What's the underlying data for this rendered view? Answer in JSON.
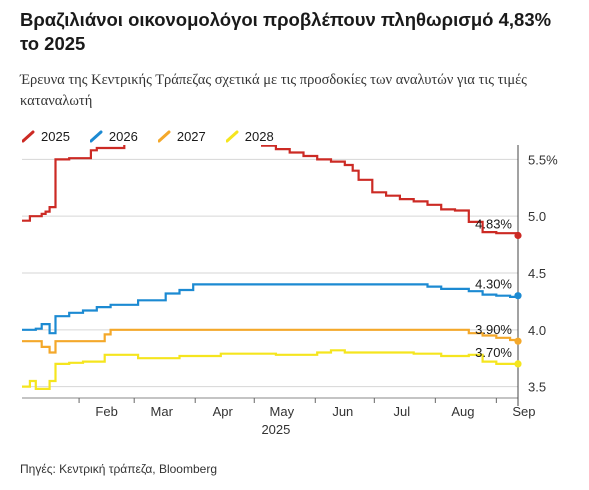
{
  "title": "Βραζιλιάνοι οικονομολόγοι προβλέπουν πληθωρισμό 4,83% το 2025",
  "subtitle": "Έρευνα της Κεντρικής Τράπεζας σχετικά με τις προσδοκίες των αναλυτών για τις τιμές καταναλωτή",
  "source": "Πηγές: Κεντρική τράπεζα, Bloomberg",
  "chart_data": {
    "type": "line",
    "x_axis": {
      "ticks": [
        "Feb",
        "Mar",
        "Apr",
        "May",
        "Jun",
        "Jul",
        "Aug",
        "Sep"
      ],
      "year_label": "2025",
      "range": [
        "2025-01-03",
        "2025-09-12"
      ]
    },
    "y_axis": {
      "ticks": [
        {
          "value": 5.5,
          "label": "5.5%"
        },
        {
          "value": 5.0,
          "label": "5.0"
        },
        {
          "value": 4.5,
          "label": "4.5"
        },
        {
          "value": 4.0,
          "label": "4.0"
        },
        {
          "value": 3.5,
          "label": "3.5"
        }
      ],
      "ylim": [
        3.4,
        5.6
      ],
      "position": "right",
      "grid": true
    },
    "series": [
      {
        "name": "2025",
        "color": "#cc2a24",
        "end_label": "4.83%",
        "points": [
          [
            "2025-01-03",
            4.96
          ],
          [
            "2025-01-07",
            5.0
          ],
          [
            "2025-01-10",
            5.0
          ],
          [
            "2025-01-13",
            5.02
          ],
          [
            "2025-01-15",
            5.04
          ],
          [
            "2025-01-17",
            5.08
          ],
          [
            "2025-01-20",
            5.5
          ],
          [
            "2025-01-27",
            5.51
          ],
          [
            "2025-02-03",
            5.51
          ],
          [
            "2025-02-07",
            5.58
          ],
          [
            "2025-02-10",
            5.6
          ],
          [
            "2025-02-17",
            5.6
          ],
          [
            "2025-02-24",
            5.65
          ],
          [
            "2025-03-03",
            5.65
          ],
          [
            "2025-03-07",
            5.68
          ],
          [
            "2025-03-10",
            5.68
          ],
          [
            "2025-03-14",
            5.66
          ],
          [
            "2025-03-17",
            5.66
          ],
          [
            "2025-03-21",
            5.65
          ],
          [
            "2025-03-31",
            5.65
          ],
          [
            "2025-04-07",
            5.65
          ],
          [
            "2025-04-14",
            5.65
          ],
          [
            "2025-04-21",
            5.65
          ],
          [
            "2025-04-28",
            5.65
          ],
          [
            "2025-05-05",
            5.62
          ],
          [
            "2025-05-12",
            5.59
          ],
          [
            "2025-05-19",
            5.56
          ],
          [
            "2025-05-26",
            5.53
          ],
          [
            "2025-06-02",
            5.5
          ],
          [
            "2025-06-09",
            5.48
          ],
          [
            "2025-06-16",
            5.45
          ],
          [
            "2025-06-20",
            5.4
          ],
          [
            "2025-06-23",
            5.32
          ],
          [
            "2025-06-30",
            5.21
          ],
          [
            "2025-07-07",
            5.18
          ],
          [
            "2025-07-14",
            5.15
          ],
          [
            "2025-07-21",
            5.13
          ],
          [
            "2025-07-28",
            5.1
          ],
          [
            "2025-08-04",
            5.06
          ],
          [
            "2025-08-11",
            5.05
          ],
          [
            "2025-08-18",
            4.95
          ],
          [
            "2025-08-25",
            4.86
          ],
          [
            "2025-09-01",
            4.85
          ],
          [
            "2025-09-08",
            4.85
          ],
          [
            "2025-09-12",
            4.83
          ]
        ]
      },
      {
        "name": "2026",
        "color": "#1c8ad2",
        "end_label": "4.30%",
        "points": [
          [
            "2025-01-03",
            4.0
          ],
          [
            "2025-01-10",
            4.01
          ],
          [
            "2025-01-13",
            4.05
          ],
          [
            "2025-01-17",
            3.97
          ],
          [
            "2025-01-20",
            4.12
          ],
          [
            "2025-01-27",
            4.15
          ],
          [
            "2025-02-03",
            4.17
          ],
          [
            "2025-02-10",
            4.2
          ],
          [
            "2025-02-17",
            4.22
          ],
          [
            "2025-02-24",
            4.22
          ],
          [
            "2025-03-03",
            4.26
          ],
          [
            "2025-03-10",
            4.26
          ],
          [
            "2025-03-17",
            4.32
          ],
          [
            "2025-03-24",
            4.35
          ],
          [
            "2025-03-31",
            4.4
          ],
          [
            "2025-04-07",
            4.4
          ],
          [
            "2025-04-14",
            4.4
          ],
          [
            "2025-04-21",
            4.4
          ],
          [
            "2025-05-05",
            4.4
          ],
          [
            "2025-05-19",
            4.4
          ],
          [
            "2025-06-02",
            4.4
          ],
          [
            "2025-06-16",
            4.4
          ],
          [
            "2025-06-30",
            4.4
          ],
          [
            "2025-07-14",
            4.4
          ],
          [
            "2025-07-28",
            4.38
          ],
          [
            "2025-08-04",
            4.36
          ],
          [
            "2025-08-11",
            4.36
          ],
          [
            "2025-08-18",
            4.34
          ],
          [
            "2025-08-25",
            4.31
          ],
          [
            "2025-09-01",
            4.3
          ],
          [
            "2025-09-08",
            4.29
          ],
          [
            "2025-09-12",
            4.3
          ]
        ]
      },
      {
        "name": "2027",
        "color": "#f4a82a",
        "end_label": "3.90%",
        "points": [
          [
            "2025-01-03",
            3.9
          ],
          [
            "2025-01-10",
            3.9
          ],
          [
            "2025-01-13",
            3.85
          ],
          [
            "2025-01-17",
            3.8
          ],
          [
            "2025-01-20",
            3.9
          ],
          [
            "2025-01-27",
            3.9
          ],
          [
            "2025-02-03",
            3.9
          ],
          [
            "2025-02-10",
            3.9
          ],
          [
            "2025-02-14",
            3.96
          ],
          [
            "2025-02-17",
            4.0
          ],
          [
            "2025-03-03",
            4.0
          ],
          [
            "2025-04-01",
            4.0
          ],
          [
            "2025-05-01",
            4.0
          ],
          [
            "2025-06-02",
            4.0
          ],
          [
            "2025-07-01",
            4.0
          ],
          [
            "2025-08-01",
            4.0
          ],
          [
            "2025-08-18",
            3.97
          ],
          [
            "2025-08-25",
            3.95
          ],
          [
            "2025-09-01",
            3.93
          ],
          [
            "2025-09-08",
            3.91
          ],
          [
            "2025-09-12",
            3.9
          ]
        ]
      },
      {
        "name": "2028",
        "color": "#f5e51e",
        "end_label": "3.70%",
        "points": [
          [
            "2025-01-03",
            3.5
          ],
          [
            "2025-01-07",
            3.55
          ],
          [
            "2025-01-10",
            3.48
          ],
          [
            "2025-01-17",
            3.55
          ],
          [
            "2025-01-20",
            3.7
          ],
          [
            "2025-01-27",
            3.71
          ],
          [
            "2025-02-03",
            3.72
          ],
          [
            "2025-02-10",
            3.72
          ],
          [
            "2025-02-14",
            3.78
          ],
          [
            "2025-02-24",
            3.78
          ],
          [
            "2025-03-03",
            3.75
          ],
          [
            "2025-03-17",
            3.75
          ],
          [
            "2025-03-24",
            3.77
          ],
          [
            "2025-04-07",
            3.77
          ],
          [
            "2025-04-14",
            3.79
          ],
          [
            "2025-04-28",
            3.79
          ],
          [
            "2025-05-12",
            3.78
          ],
          [
            "2025-05-26",
            3.78
          ],
          [
            "2025-06-02",
            3.8
          ],
          [
            "2025-06-09",
            3.82
          ],
          [
            "2025-06-16",
            3.8
          ],
          [
            "2025-06-23",
            3.8
          ],
          [
            "2025-07-07",
            3.8
          ],
          [
            "2025-07-21",
            3.79
          ],
          [
            "2025-08-04",
            3.77
          ],
          [
            "2025-08-18",
            3.78
          ],
          [
            "2025-08-25",
            3.72
          ],
          [
            "2025-09-01",
            3.7
          ],
          [
            "2025-09-08",
            3.7
          ],
          [
            "2025-09-12",
            3.7
          ]
        ]
      }
    ]
  }
}
